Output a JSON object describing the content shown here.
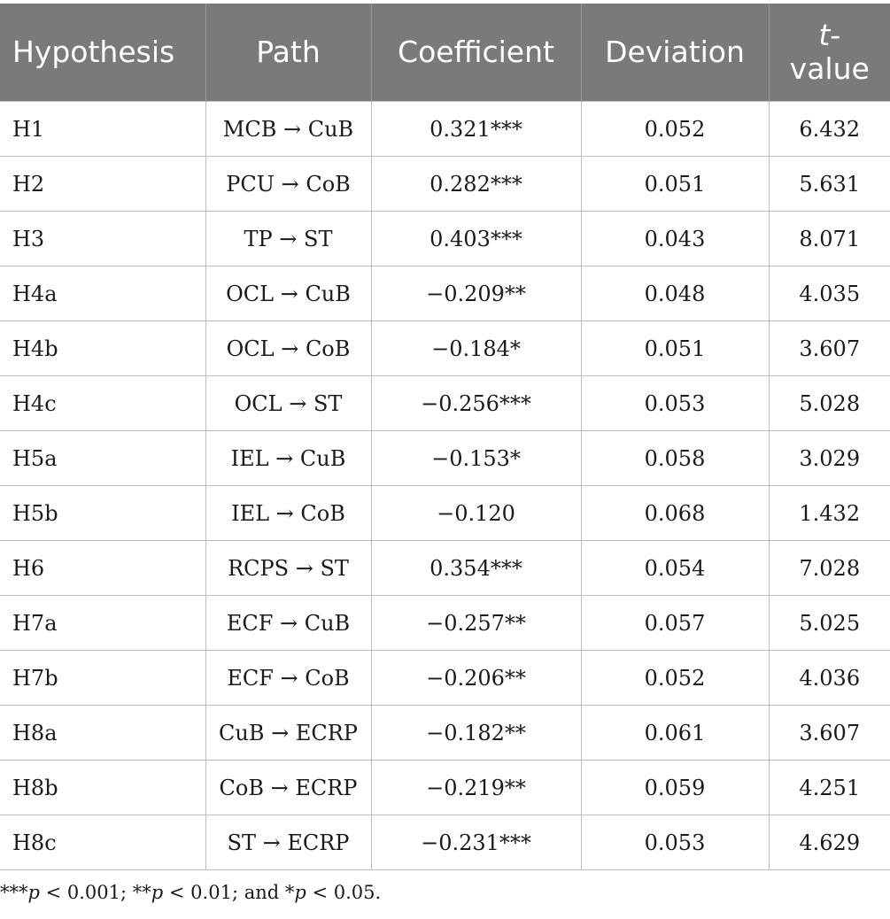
{
  "table": {
    "headers": {
      "hypothesis": "Hypothesis",
      "path": "Path",
      "coefficient": "Coefficient",
      "deviation": "Deviation",
      "t_value_italic": "t",
      "t_value_dash": "-",
      "t_value_rest": "value"
    },
    "rows": [
      {
        "hypothesis": "H1",
        "path": "MCB → CuB",
        "coefficient": "0.321***",
        "deviation": "0.052",
        "t_value": "6.432"
      },
      {
        "hypothesis": "H2",
        "path": "PCU → CoB",
        "coefficient": "0.282***",
        "deviation": "0.051",
        "t_value": "5.631"
      },
      {
        "hypothesis": "H3",
        "path": "TP → ST",
        "coefficient": "0.403***",
        "deviation": "0.043",
        "t_value": "8.071"
      },
      {
        "hypothesis": "H4a",
        "path": "OCL → CuB",
        "coefficient": "−0.209**",
        "deviation": "0.048",
        "t_value": "4.035"
      },
      {
        "hypothesis": "H4b",
        "path": "OCL → CoB",
        "coefficient": "−0.184*",
        "deviation": "0.051",
        "t_value": "3.607"
      },
      {
        "hypothesis": "H4c",
        "path": "OCL → ST",
        "coefficient": "−0.256***",
        "deviation": "0.053",
        "t_value": "5.028"
      },
      {
        "hypothesis": "H5a",
        "path": "IEL → CuB",
        "coefficient": "−0.153*",
        "deviation": "0.058",
        "t_value": "3.029"
      },
      {
        "hypothesis": "H5b",
        "path": "IEL → CoB",
        "coefficient": "−0.120",
        "deviation": "0.068",
        "t_value": "1.432"
      },
      {
        "hypothesis": "H6",
        "path": "RCPS → ST",
        "coefficient": "0.354***",
        "deviation": "0.054",
        "t_value": "7.028"
      },
      {
        "hypothesis": "H7a",
        "path": "ECF → CuB",
        "coefficient": "−0.257**",
        "deviation": "0.057",
        "t_value": "5.025"
      },
      {
        "hypothesis": "H7b",
        "path": "ECF → CoB",
        "coefficient": "−0.206**",
        "deviation": "0.052",
        "t_value": "4.036"
      },
      {
        "hypothesis": "H8a",
        "path": "CuB → ECRP",
        "coefficient": "−0.182**",
        "deviation": "0.061",
        "t_value": "3.607"
      },
      {
        "hypothesis": "H8b",
        "path": "CoB → ECRP",
        "coefficient": "−0.219**",
        "deviation": "0.059",
        "t_value": "4.251"
      },
      {
        "hypothesis": "H8c",
        "path": "ST → ECRP",
        "coefficient": "−0.231***",
        "deviation": "0.053",
        "t_value": "4.629"
      }
    ]
  },
  "footnote": {
    "s1": "***",
    "p1": "p",
    "v1": " < 0.001; **",
    "p2": "p",
    "v2": " < 0.01; and *",
    "p3": "p",
    "v3": " < 0.05."
  }
}
